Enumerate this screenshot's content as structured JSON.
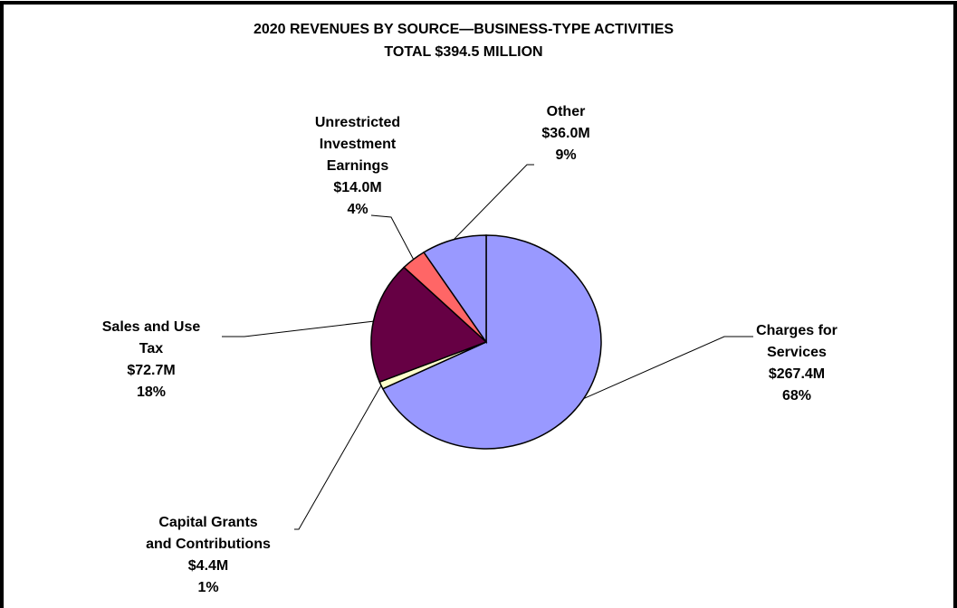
{
  "chart_data": {
    "type": "pie",
    "title": "2020 REVENUES BY SOURCE—BUSINESS-TYPE ACTIVITIES",
    "subtitle": "TOTAL $394.5 MILLION",
    "categories": [
      "Charges for\nServices",
      "Capital Grants\nand Contributions",
      "Sales and Use\nTax",
      "Unrestricted\nInvestment\nEarnings",
      "Other"
    ],
    "values": [
      267.4,
      4.4,
      72.7,
      14.0,
      36.0
    ],
    "value_labels": [
      "$267.4M",
      "$4.4M",
      "$72.7M",
      "$14.0M",
      "$36.0M"
    ],
    "percent_labels": [
      "68%",
      "1%",
      "18%",
      "4%",
      "9%"
    ],
    "colors": [
      "#9999ff",
      "#ffffcc",
      "#660044",
      "#ff6666",
      "#9999ff"
    ]
  }
}
